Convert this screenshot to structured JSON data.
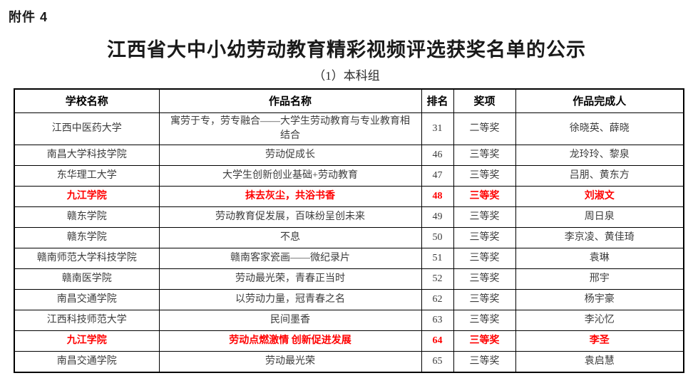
{
  "page": {
    "attachment_label": "附件 4",
    "title": "江西省大中小幼劳动教育精彩视频评选获奖名单的公示",
    "subtitle": "（1）本科组"
  },
  "colors": {
    "highlight_red": "#ff0000",
    "body_text": "#3c3c3c",
    "header_text": "#000000",
    "border": "#000000",
    "background": "#ffffff"
  },
  "table": {
    "headers": [
      "学校名称",
      "作品名称",
      "排名",
      "奖项",
      "作品完成人"
    ],
    "rows": [
      {
        "school": "江西中医药大学",
        "work": "寓劳于专，劳专融合——大学生劳动教育与专业教育相结合",
        "rank": "31",
        "award": "二等奖",
        "authors": "徐晓英、薛晓",
        "highlight": false
      },
      {
        "school": "南昌大学科技学院",
        "work": "劳动促成长",
        "rank": "46",
        "award": "三等奖",
        "authors": "龙玲玲、黎泉",
        "highlight": false
      },
      {
        "school": "东华理工大学",
        "work": "大学生创新创业基础+劳动教育",
        "rank": "47",
        "award": "三等奖",
        "authors": "吕朋、黄东方",
        "highlight": false
      },
      {
        "school": "九江学院",
        "work": "抹去灰尘，共浴书香",
        "rank": "48",
        "award": "三等奖",
        "authors": "刘淑文",
        "highlight": true
      },
      {
        "school": "赣东学院",
        "work": "劳动教育促发展，百味纷呈创未来",
        "rank": "49",
        "award": "三等奖",
        "authors": "周日泉",
        "highlight": false
      },
      {
        "school": "赣东学院",
        "work": "不息",
        "rank": "50",
        "award": "三等奖",
        "authors": "李京凌、黄佳琦",
        "highlight": false
      },
      {
        "school": "赣南师范大学科技学院",
        "work": "赣南客家瓷画——微纪录片",
        "rank": "51",
        "award": "三等奖",
        "authors": "袁琳",
        "highlight": false
      },
      {
        "school": "赣南医学院",
        "work": "劳动最光荣，青春正当时",
        "rank": "52",
        "award": "三等奖",
        "authors": "邢宇",
        "highlight": false
      },
      {
        "school": "南昌交通学院",
        "work": "以劳动力量，冠青春之名",
        "rank": "62",
        "award": "三等奖",
        "authors": "杨宇豪",
        "highlight": false
      },
      {
        "school": "江西科技师范大学",
        "work": "民间墨香",
        "rank": "63",
        "award": "三等奖",
        "authors": "李沁忆",
        "highlight": false
      },
      {
        "school": "九江学院",
        "work": "劳动点燃激情 创新促进发展",
        "rank": "64",
        "award": "三等奖",
        "authors": "李圣",
        "highlight": true
      },
      {
        "school": "南昌交通学院",
        "work": "劳动最光荣",
        "rank": "65",
        "award": "三等奖",
        "authors": "袁启慧",
        "highlight": false
      }
    ]
  }
}
